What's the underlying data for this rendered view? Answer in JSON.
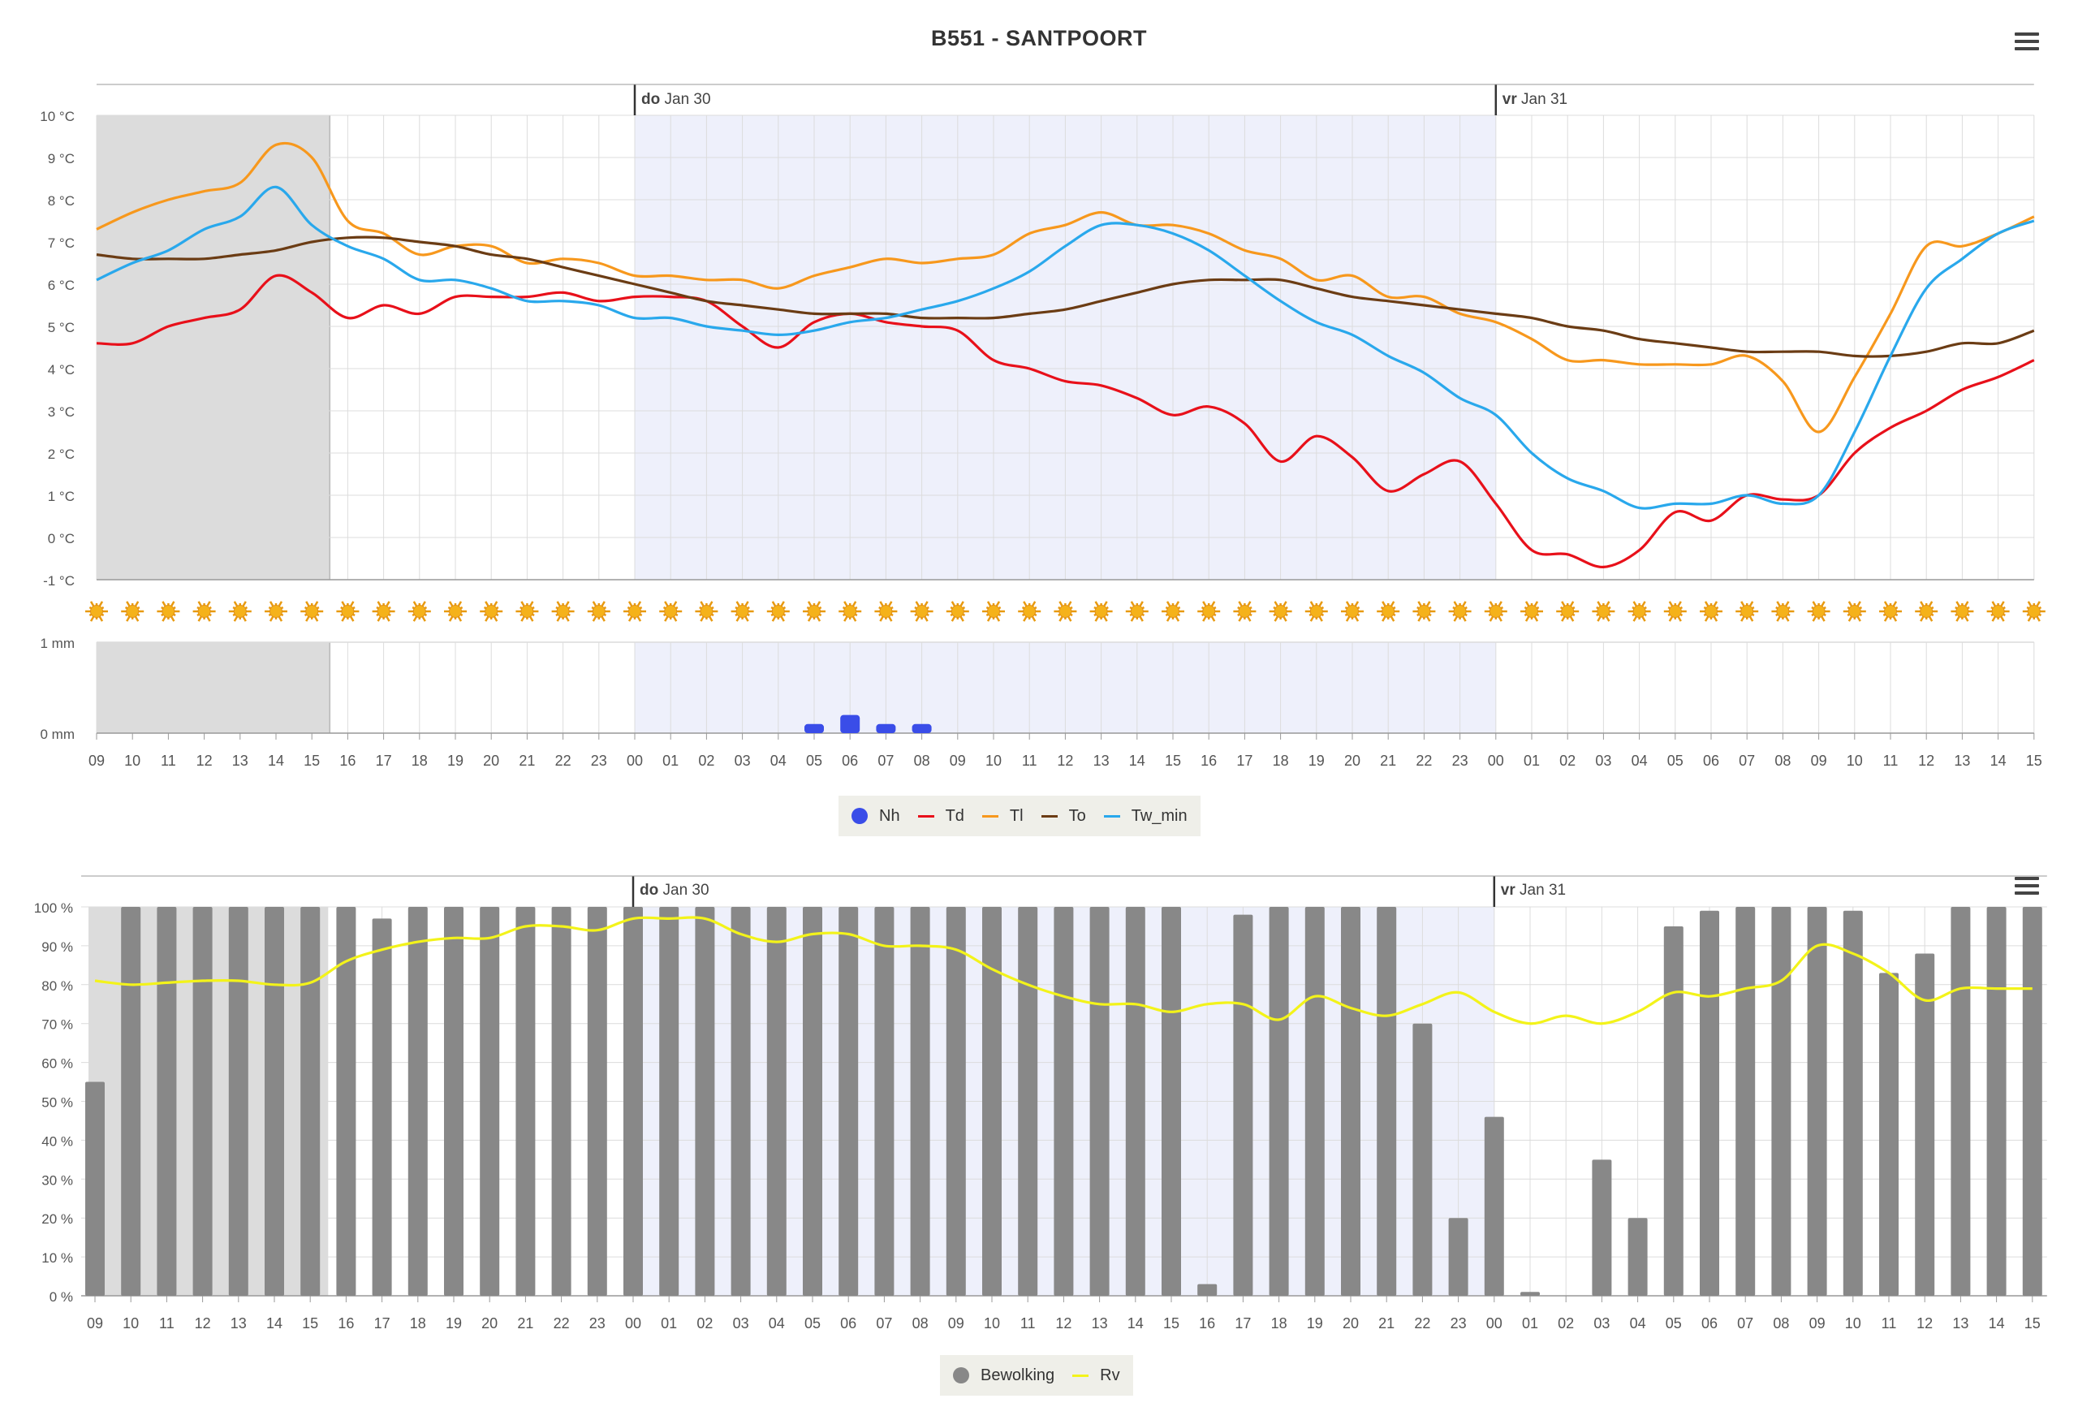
{
  "page": {
    "title": "B551 - SANTPOORT",
    "day_labels": [
      {
        "prefix": "do",
        "date": "Jan 30",
        "at_index": 15
      },
      {
        "prefix": "vr",
        "date": "Jan 31",
        "at_index": 39
      }
    ],
    "hours": [
      "09",
      "10",
      "11",
      "12",
      "13",
      "14",
      "15",
      "16",
      "17",
      "18",
      "19",
      "20",
      "21",
      "22",
      "23",
      "00",
      "01",
      "02",
      "03",
      "04",
      "05",
      "06",
      "07",
      "08",
      "09",
      "10",
      "11",
      "12",
      "13",
      "14",
      "15",
      "16",
      "17",
      "18",
      "19",
      "20",
      "21",
      "22",
      "23",
      "00",
      "01",
      "02",
      "03",
      "04",
      "05",
      "06",
      "07",
      "08",
      "09",
      "10",
      "11",
      "12",
      "13",
      "14",
      "15"
    ],
    "weather_icon": "sun-icon",
    "legend_top": [
      {
        "name": "Nh",
        "color": "#3a4de8",
        "symbol": "dot"
      },
      {
        "name": "Td",
        "color": "#e8101a",
        "symbol": "line"
      },
      {
        "name": "Tl",
        "color": "#f7981d",
        "symbol": "line"
      },
      {
        "name": "To",
        "color": "#6b3c14",
        "symbol": "line"
      },
      {
        "name": "Tw_min",
        "color": "#29a8ec",
        "symbol": "line"
      }
    ],
    "legend_bottom": [
      {
        "name": "Bewolking",
        "color": "#888888",
        "symbol": "dot"
      },
      {
        "name": "Rv",
        "color": "#f3f31a",
        "symbol": "line"
      }
    ]
  },
  "chart_data": [
    {
      "type": "line",
      "title": "B551 - SANTPOORT",
      "ylim": [
        -1,
        10
      ],
      "yticks": [
        "10 °C",
        "9 °C",
        "8 °C",
        "7 °C",
        "6 °C",
        "5 °C",
        "4 °C",
        "3 °C",
        "2 °C",
        "1 °C",
        "0 °C",
        "-1 °C"
      ],
      "shading": {
        "history": [
          0,
          6.5
        ],
        "night": [
          15,
          39
        ]
      },
      "series": [
        {
          "name": "Td",
          "color": "#e8101a",
          "values": [
            4.6,
            4.6,
            5.0,
            5.2,
            5.4,
            6.2,
            5.8,
            5.2,
            5.5,
            5.3,
            5.7,
            5.7,
            5.7,
            5.8,
            5.6,
            5.7,
            5.7,
            5.6,
            5.0,
            4.5,
            5.1,
            5.3,
            5.1,
            5.0,
            4.9,
            4.2,
            4.0,
            3.7,
            3.6,
            3.3,
            2.9,
            3.1,
            2.7,
            1.8,
            2.4,
            1.9,
            1.1,
            1.5,
            1.8,
            0.8,
            -0.3,
            -0.4,
            -0.7,
            -0.3,
            0.6,
            0.4,
            1.0,
            0.9,
            1.0,
            2.0,
            2.6,
            3.0,
            3.5,
            3.8,
            4.2
          ]
        },
        {
          "name": "Tl",
          "color": "#f7981d",
          "values": [
            7.3,
            7.7,
            8.0,
            8.2,
            8.4,
            9.3,
            9.0,
            7.5,
            7.2,
            6.7,
            6.9,
            6.9,
            6.5,
            6.6,
            6.5,
            6.2,
            6.2,
            6.1,
            6.1,
            5.9,
            6.2,
            6.4,
            6.6,
            6.5,
            6.6,
            6.7,
            7.2,
            7.4,
            7.7,
            7.4,
            7.4,
            7.2,
            6.8,
            6.6,
            6.1,
            6.2,
            5.7,
            5.7,
            5.3,
            5.1,
            4.7,
            4.2,
            4.2,
            4.1,
            4.1,
            4.1,
            4.3,
            3.7,
            2.5,
            3.8,
            5.3,
            6.9,
            6.9,
            7.2,
            7.6
          ]
        },
        {
          "name": "To",
          "color": "#6b3c14",
          "values": [
            6.7,
            6.6,
            6.6,
            6.6,
            6.7,
            6.8,
            7.0,
            7.1,
            7.1,
            7.0,
            6.9,
            6.7,
            6.6,
            6.4,
            6.2,
            6.0,
            5.8,
            5.6,
            5.5,
            5.4,
            5.3,
            5.3,
            5.3,
            5.2,
            5.2,
            5.2,
            5.3,
            5.4,
            5.6,
            5.8,
            6.0,
            6.1,
            6.1,
            6.1,
            5.9,
            5.7,
            5.6,
            5.5,
            5.4,
            5.3,
            5.2,
            5.0,
            4.9,
            4.7,
            4.6,
            4.5,
            4.4,
            4.4,
            4.4,
            4.3,
            4.3,
            4.4,
            4.6,
            4.6,
            4.9
          ]
        },
        {
          "name": "Tw_min",
          "color": "#29a8ec",
          "values": [
            6.1,
            6.5,
            6.8,
            7.3,
            7.6,
            8.3,
            7.4,
            6.9,
            6.6,
            6.1,
            6.1,
            5.9,
            5.6,
            5.6,
            5.5,
            5.2,
            5.2,
            5.0,
            4.9,
            4.8,
            4.9,
            5.1,
            5.2,
            5.4,
            5.6,
            5.9,
            6.3,
            6.9,
            7.4,
            7.4,
            7.2,
            6.8,
            6.2,
            5.6,
            5.1,
            4.8,
            4.3,
            3.9,
            3.3,
            2.9,
            2.0,
            1.4,
            1.1,
            0.7,
            0.8,
            0.8,
            1.0,
            0.8,
            1.0,
            2.5,
            4.3,
            5.9,
            6.6,
            7.2,
            7.5
          ]
        }
      ],
      "hatched_note": ""
    },
    {
      "type": "bar",
      "ylim": [
        0,
        1
      ],
      "yticks": [
        "1 mm",
        "0 mm"
      ],
      "series": [
        {
          "name": "Nh",
          "color": "#3a4de8",
          "values": [
            0,
            0,
            0,
            0,
            0,
            0,
            0,
            0,
            0,
            0,
            0,
            0,
            0,
            0,
            0,
            0,
            0,
            0,
            0,
            0,
            0.1,
            0.2,
            0.1,
            0.1,
            0,
            0,
            0,
            0,
            0,
            0,
            0,
            0,
            0,
            0,
            0,
            0,
            0,
            0,
            0,
            0,
            0,
            0,
            0,
            0,
            0,
            0,
            0,
            0,
            0,
            0,
            0,
            0,
            0,
            0,
            0
          ]
        }
      ]
    },
    {
      "type": "bar",
      "ylim": [
        0,
        100
      ],
      "yticks": [
        "100 %",
        "90 %",
        "80 %",
        "70 %",
        "60 %",
        "50 %",
        "40 %",
        "30 %",
        "20 %",
        "10 %",
        "0 %"
      ],
      "series": [
        {
          "name": "Bewolking",
          "color": "#888888",
          "values": [
            55,
            100,
            100,
            100,
            100,
            100,
            100,
            100,
            97,
            100,
            100,
            100,
            100,
            100,
            100,
            100,
            100,
            100,
            100,
            100,
            100,
            100,
            100,
            100,
            100,
            100,
            100,
            100,
            100,
            100,
            100,
            3,
            98,
            100,
            100,
            100,
            100,
            70,
            20,
            46,
            1,
            0,
            35,
            20,
            95,
            99,
            100,
            100,
            100,
            99,
            83,
            88,
            100,
            100,
            100
          ]
        },
        {
          "name": "Rv",
          "color": "#f3f31a",
          "type": "line",
          "values": [
            81,
            80,
            80.5,
            81,
            81,
            80,
            80.5,
            86,
            89,
            91,
            92,
            92,
            95,
            95,
            94,
            97,
            97,
            97,
            93,
            91,
            93,
            93,
            90,
            90,
            89,
            84,
            80,
            77,
            75,
            75,
            73,
            75,
            75,
            71,
            77,
            74,
            72,
            75,
            78,
            73,
            70,
            72,
            70,
            73,
            78,
            77,
            79,
            81,
            90,
            88,
            83,
            76,
            79,
            79,
            79
          ]
        }
      ]
    }
  ]
}
